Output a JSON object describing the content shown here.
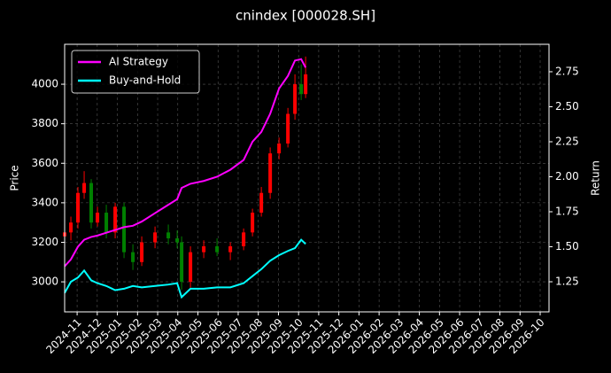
{
  "chart_data": {
    "type": "candlestick",
    "title": "cnindex [000028.SH]",
    "ylabel": "Price",
    "y2label": "Return",
    "x": [
      -0.62,
      -0.31,
      0.04,
      0.35,
      0.7,
      1.01,
      1.45,
      1.89,
      2.33,
      2.77,
      3.21,
      3.87,
      4.53,
      4.97,
      5.19,
      5.63,
      6.29,
      6.95,
      7.61,
      8.27,
      8.71,
      9.15,
      9.59,
      10.03,
      10.47,
      10.82,
      11.13,
      11.35
    ],
    "open": [
      3230,
      3250,
      3300,
      3450,
      3500,
      3300,
      3350,
      3250,
      3380,
      3150,
      3100,
      3200,
      3250,
      3220,
      3200,
      3000,
      3150,
      3180,
      3150,
      3180,
      3250,
      3350,
      3450,
      3650,
      3700,
      3850,
      4000,
      3950
    ],
    "high": [
      3290,
      3330,
      3480,
      3560,
      3520,
      3380,
      3390,
      3400,
      3400,
      3190,
      3230,
      3280,
      3290,
      3260,
      3230,
      3180,
      3210,
      3220,
      3200,
      3270,
      3370,
      3480,
      3680,
      3730,
      3880,
      4050,
      4100,
      4140
    ],
    "low": [
      3190,
      3210,
      3270,
      3420,
      3270,
      3280,
      3220,
      3220,
      3120,
      3060,
      3080,
      3170,
      3190,
      3170,
      2960,
      2970,
      3120,
      3130,
      3110,
      3160,
      3230,
      3330,
      3420,
      3620,
      3680,
      3820,
      3920,
      3930
    ],
    "close": [
      3250,
      3300,
      3450,
      3500,
      3300,
      3350,
      3250,
      3380,
      3150,
      3100,
      3200,
      3250,
      3220,
      3200,
      3000,
      3150,
      3180,
      3150,
      3180,
      3250,
      3350,
      3450,
      3650,
      3700,
      3850,
      4000,
      3950,
      4050
    ],
    "up_color": "#ff0000",
    "down_color": "#008000",
    "series": [
      {
        "name": "AI Strategy",
        "color": "#ff00ff",
        "axis": "y2",
        "values": [
          1.36,
          1.41,
          1.5,
          1.55,
          1.57,
          1.58,
          1.6,
          1.62,
          1.64,
          1.65,
          1.68,
          1.74,
          1.8,
          1.84,
          1.92,
          1.95,
          1.97,
          2.0,
          2.05,
          2.12,
          2.25,
          2.32,
          2.45,
          2.63,
          2.72,
          2.83,
          2.84,
          2.78
        ]
      },
      {
        "name": "Buy-and-Hold",
        "color": "#00ffff",
        "axis": "y2",
        "values": [
          1.17,
          1.25,
          1.28,
          1.33,
          1.26,
          1.24,
          1.22,
          1.19,
          1.2,
          1.22,
          1.21,
          1.22,
          1.23,
          1.24,
          1.14,
          1.2,
          1.2,
          1.21,
          1.21,
          1.24,
          1.29,
          1.34,
          1.4,
          1.44,
          1.47,
          1.49,
          1.55,
          1.52
        ]
      }
    ],
    "xlim": [
      -0.62,
      23.44
    ],
    "ylim": [
      2848,
      4202
    ],
    "y2lim": [
      1.035,
      2.946
    ],
    "xticks": [
      {
        "value": 0,
        "label": "2024-11"
      },
      {
        "value": 1,
        "label": "2024-12"
      },
      {
        "value": 2,
        "label": "2025-01"
      },
      {
        "value": 3,
        "label": "2025-02"
      },
      {
        "value": 4,
        "label": "2025-03"
      },
      {
        "value": 5,
        "label": "2025-04"
      },
      {
        "value": 6,
        "label": "2025-05"
      },
      {
        "value": 7,
        "label": "2025-06"
      },
      {
        "value": 8,
        "label": "2025-07"
      },
      {
        "value": 9,
        "label": "2025-08"
      },
      {
        "value": 10,
        "label": "2025-09"
      },
      {
        "value": 11,
        "label": "2025-10"
      },
      {
        "value": 12,
        "label": "2025-11"
      },
      {
        "value": 13,
        "label": "2025-12"
      },
      {
        "value": 14,
        "label": "2026-01"
      },
      {
        "value": 15,
        "label": "2026-02"
      },
      {
        "value": 16,
        "label": "2026-03"
      },
      {
        "value": 17,
        "label": "2026-04"
      },
      {
        "value": 18,
        "label": "2026-05"
      },
      {
        "value": 19,
        "label": "2026-06"
      },
      {
        "value": 20,
        "label": "2026-07"
      },
      {
        "value": 21,
        "label": "2026-08"
      },
      {
        "value": 22,
        "label": "2026-09"
      },
      {
        "value": 23,
        "label": "2026-10"
      }
    ],
    "yticks": [
      3000,
      3200,
      3400,
      3600,
      3800,
      4000
    ],
    "y2ticks": [
      1.25,
      {
        "value": 1.5,
        "label": "1.50"
      },
      1.75,
      {
        "value": 2.0,
        "label": "2.00"
      },
      2.25,
      {
        "value": 2.5,
        "label": "2.50"
      },
      2.75
    ],
    "grid": true,
    "legend": "upper-left"
  }
}
